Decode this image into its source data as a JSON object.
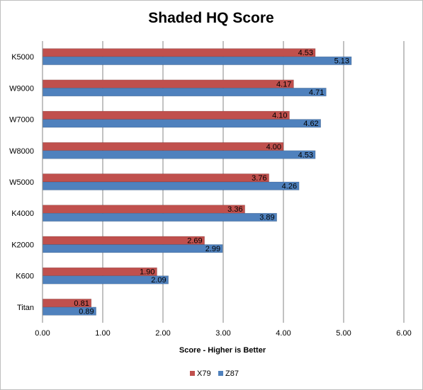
{
  "chart_data": {
    "type": "bar",
    "orientation": "horizontal",
    "title": "Shaded HQ Score",
    "xlabel": "Score - Higher is Better",
    "ylabel": "",
    "xlim": [
      0,
      6
    ],
    "x_ticks": [
      "0.00",
      "1.00",
      "2.00",
      "3.00",
      "4.00",
      "5.00",
      "6.00"
    ],
    "grid": true,
    "legend_position": "bottom",
    "categories": [
      "K5000",
      "W9000",
      "W7000",
      "W8000",
      "W5000",
      "K4000",
      "K2000",
      "K600",
      "Titan"
    ],
    "series": [
      {
        "name": "X79",
        "color": "#c0504d",
        "values": [
          4.53,
          4.17,
          4.1,
          4.0,
          3.76,
          3.36,
          2.69,
          1.9,
          0.81
        ],
        "labels": [
          "4.53",
          "4.17",
          "4.10",
          "4.00",
          "3.76",
          "3.36",
          "2.69",
          "1.90",
          "0.81"
        ]
      },
      {
        "name": "Z87",
        "color": "#4f81bd",
        "values": [
          5.13,
          4.71,
          4.62,
          4.53,
          4.26,
          3.89,
          2.99,
          2.09,
          0.89
        ],
        "labels": [
          "5.13",
          "4.71",
          "4.62",
          "4.53",
          "4.26",
          "3.89",
          "2.99",
          "2.09",
          "0.89"
        ]
      }
    ]
  }
}
